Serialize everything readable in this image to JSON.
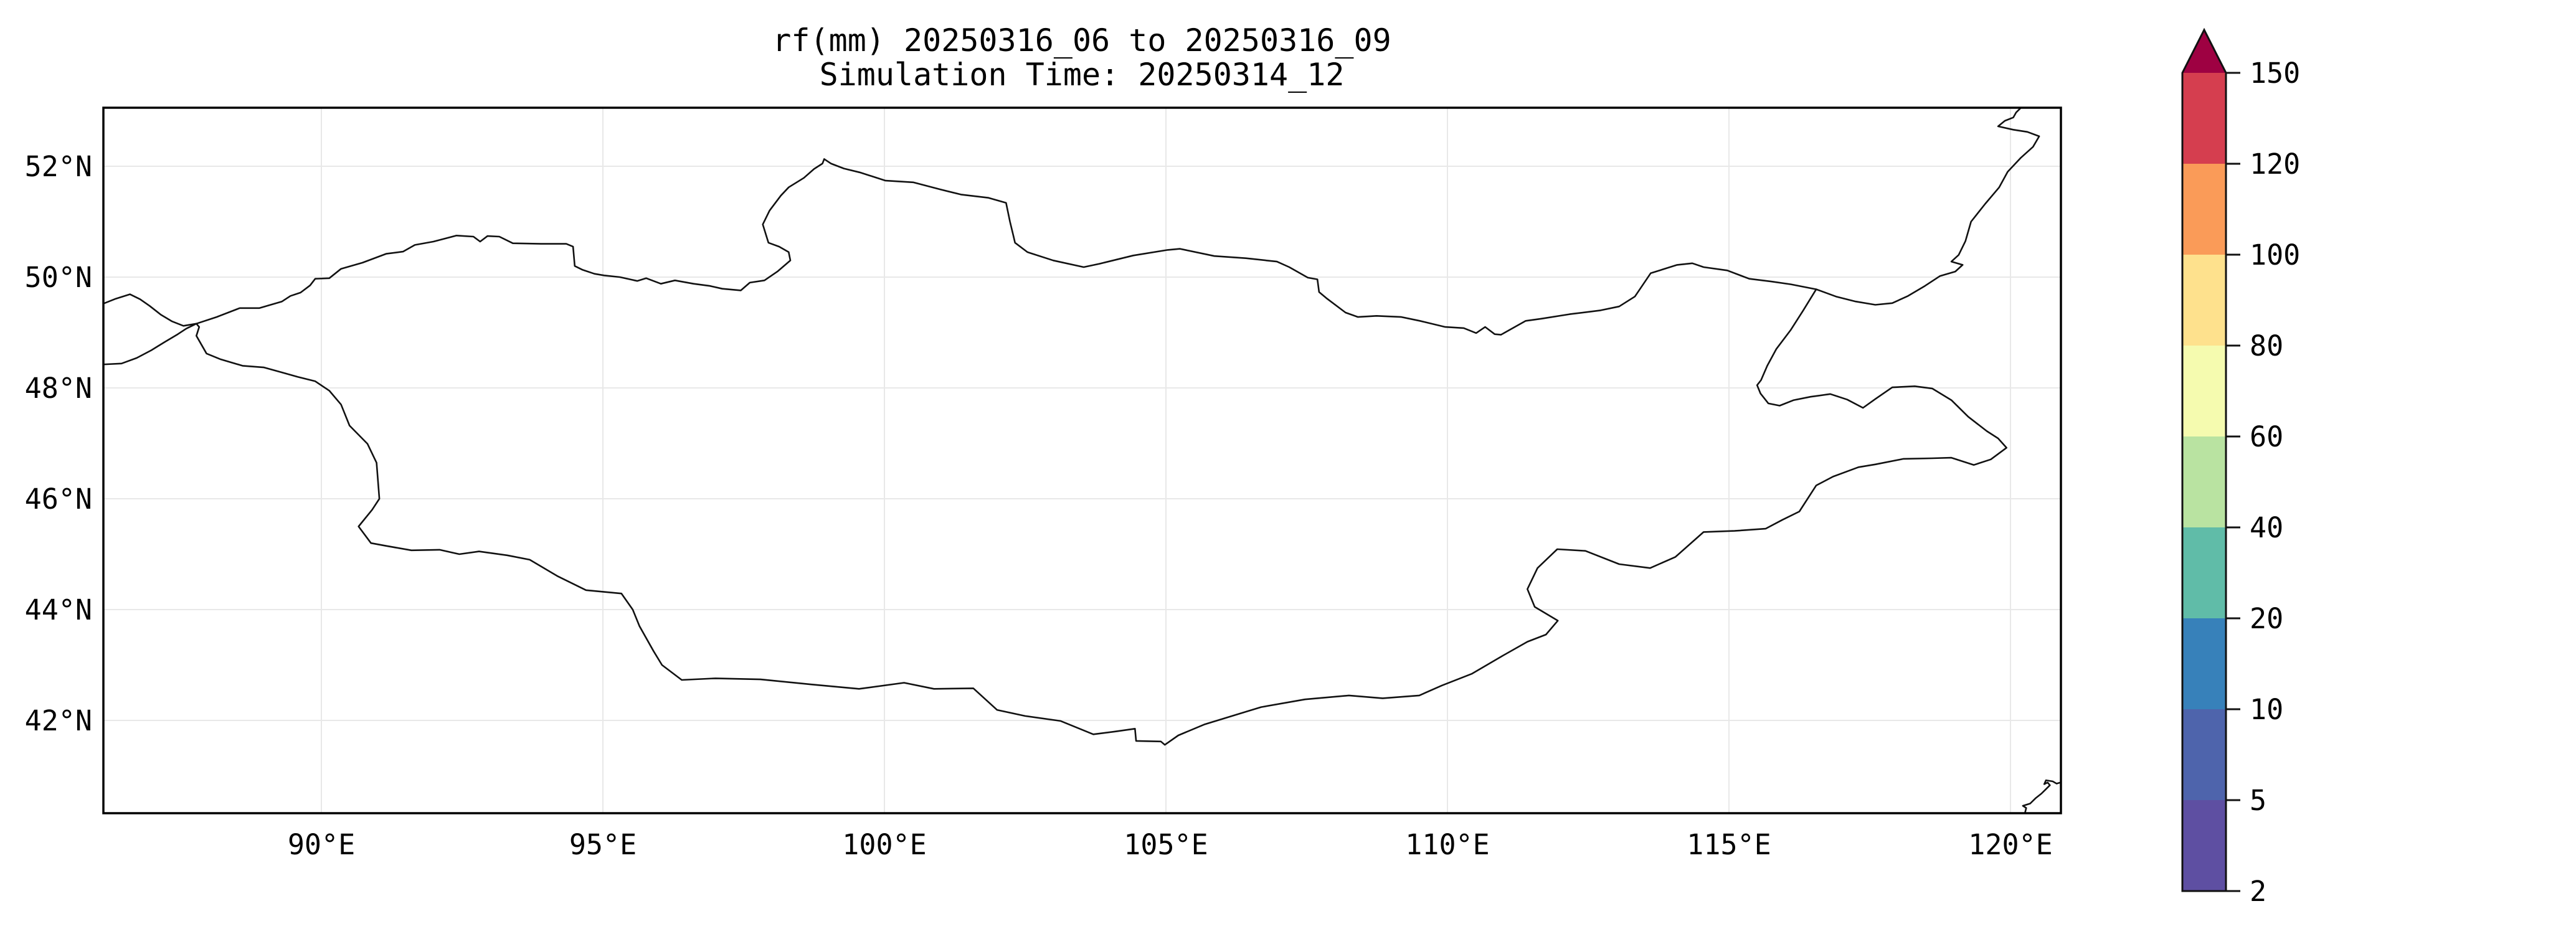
{
  "title": {
    "line1": "rf(mm) 20250316_06 to 20250316_09",
    "line2": "Simulation Time: 20250314_12"
  },
  "axes": {
    "x_ticks": [
      {
        "value": 90,
        "label": "90°E"
      },
      {
        "value": 95,
        "label": "95°E"
      },
      {
        "value": 100,
        "label": "100°E"
      },
      {
        "value": 105,
        "label": "105°E"
      },
      {
        "value": 110,
        "label": "110°E"
      },
      {
        "value": 115,
        "label": "115°E"
      },
      {
        "value": 120,
        "label": "120°E"
      }
    ],
    "y_ticks": [
      {
        "value": 52,
        "label": "52°N"
      },
      {
        "value": 50,
        "label": "50°N"
      },
      {
        "value": 48,
        "label": "48°N"
      },
      {
        "value": 46,
        "label": "46°N"
      },
      {
        "value": 44,
        "label": "44°N"
      },
      {
        "value": 42,
        "label": "42°N"
      }
    ]
  },
  "colorbar": {
    "levels": [
      2,
      5,
      10,
      20,
      40,
      60,
      80,
      100,
      120,
      150
    ],
    "tick_labels": [
      "2",
      "5",
      "10",
      "20",
      "40",
      "60",
      "80",
      "100",
      "120",
      "150"
    ],
    "segment_colors": [
      "#5e4fa2",
      "#4e64ac",
      "#3781ba",
      "#60bca8",
      "#b9e3a1",
      "#f5fbaf",
      "#fee18d",
      "#fa9b58",
      "#d53e4f"
    ],
    "over_color": "#9e0142",
    "outline_color": "#111111"
  },
  "map": {
    "grid_color": "#e8e8e8",
    "border_color": "#111111",
    "borders": {
      "mongolia": [
        [
          87.78,
          49.16
        ],
        [
          88.14,
          49.28
        ],
        [
          88.55,
          49.44
        ],
        [
          88.9,
          49.44
        ],
        [
          89.1,
          49.5
        ],
        [
          89.3,
          49.56
        ],
        [
          89.45,
          49.66
        ],
        [
          89.63,
          49.72
        ],
        [
          89.8,
          49.85
        ],
        [
          89.89,
          49.97
        ],
        [
          90.14,
          49.98
        ],
        [
          90.35,
          50.15
        ],
        [
          90.73,
          50.26
        ],
        [
          91.15,
          50.42
        ],
        [
          91.45,
          50.46
        ],
        [
          91.66,
          50.58
        ],
        [
          91.99,
          50.64
        ],
        [
          92.4,
          50.75
        ],
        [
          92.7,
          50.73
        ],
        [
          92.82,
          50.64
        ],
        [
          92.95,
          50.74
        ],
        [
          93.16,
          50.73
        ],
        [
          93.4,
          50.61
        ],
        [
          93.9,
          50.6
        ],
        [
          94.35,
          50.6
        ],
        [
          94.47,
          50.55
        ],
        [
          94.5,
          50.2
        ],
        [
          94.64,
          50.13
        ],
        [
          94.85,
          50.06
        ],
        [
          95.02,
          50.03
        ],
        [
          95.3,
          50.0
        ],
        [
          95.61,
          49.93
        ],
        [
          95.77,
          49.98
        ],
        [
          96.03,
          49.88
        ],
        [
          96.28,
          49.94
        ],
        [
          96.61,
          49.88
        ],
        [
          96.9,
          49.84
        ],
        [
          97.12,
          49.79
        ],
        [
          97.45,
          49.76
        ],
        [
          97.61,
          49.9
        ],
        [
          97.87,
          49.94
        ],
        [
          98.1,
          50.1
        ],
        [
          98.33,
          50.3
        ],
        [
          98.3,
          50.45
        ],
        [
          98.13,
          50.55
        ],
        [
          97.94,
          50.62
        ],
        [
          97.84,
          50.95
        ],
        [
          97.96,
          51.2
        ],
        [
          98.16,
          51.47
        ],
        [
          98.3,
          51.62
        ],
        [
          98.57,
          51.79
        ],
        [
          98.75,
          51.95
        ],
        [
          98.9,
          52.05
        ],
        [
          98.93,
          52.13
        ],
        [
          99.05,
          52.05
        ],
        [
          99.28,
          51.96
        ],
        [
          99.56,
          51.89
        ],
        [
          100.02,
          51.74
        ],
        [
          100.51,
          51.71
        ],
        [
          101.0,
          51.58
        ],
        [
          101.36,
          51.49
        ],
        [
          101.85,
          51.43
        ],
        [
          102.16,
          51.34
        ],
        [
          102.23,
          51.0
        ],
        [
          102.29,
          50.75
        ],
        [
          102.32,
          50.62
        ],
        [
          102.54,
          50.45
        ],
        [
          103.0,
          50.3
        ],
        [
          103.54,
          50.18
        ],
        [
          103.82,
          50.24
        ],
        [
          104.42,
          50.39
        ],
        [
          105.03,
          50.49
        ],
        [
          105.25,
          50.51
        ],
        [
          105.86,
          50.38
        ],
        [
          106.42,
          50.34
        ],
        [
          106.97,
          50.28
        ],
        [
          107.19,
          50.18
        ],
        [
          107.52,
          49.99
        ],
        [
          107.69,
          49.96
        ],
        [
          107.72,
          49.73
        ],
        [
          107.85,
          49.62
        ],
        [
          108.19,
          49.36
        ],
        [
          108.41,
          49.28
        ],
        [
          108.74,
          49.3
        ],
        [
          109.18,
          49.28
        ],
        [
          109.51,
          49.21
        ],
        [
          109.96,
          49.1
        ],
        [
          110.29,
          49.08
        ],
        [
          110.51,
          48.99
        ],
        [
          110.67,
          49.1
        ],
        [
          110.84,
          48.97
        ],
        [
          110.95,
          48.96
        ],
        [
          111.39,
          49.21
        ],
        [
          111.67,
          49.25
        ],
        [
          112.17,
          49.33
        ],
        [
          112.72,
          49.4
        ],
        [
          113.05,
          49.47
        ],
        [
          113.33,
          49.65
        ],
        [
          113.61,
          50.07
        ],
        [
          114.08,
          50.22
        ],
        [
          114.35,
          50.25
        ],
        [
          114.55,
          50.18
        ],
        [
          114.97,
          50.12
        ],
        [
          115.36,
          49.97
        ],
        [
          115.75,
          49.92
        ],
        [
          116.1,
          49.87
        ],
        [
          116.55,
          49.78
        ],
        [
          116.32,
          49.4
        ],
        [
          116.1,
          49.05
        ],
        [
          115.84,
          48.7
        ],
        [
          115.68,
          48.4
        ],
        [
          115.57,
          48.14
        ],
        [
          115.5,
          48.05
        ],
        [
          115.56,
          47.9
        ],
        [
          115.7,
          47.72
        ],
        [
          115.9,
          47.68
        ],
        [
          116.15,
          47.78
        ],
        [
          116.45,
          47.84
        ],
        [
          116.8,
          47.89
        ],
        [
          117.1,
          47.79
        ],
        [
          117.38,
          47.64
        ],
        [
          117.6,
          47.8
        ],
        [
          117.9,
          48.01
        ],
        [
          118.3,
          48.03
        ],
        [
          118.61,
          47.99
        ],
        [
          118.95,
          47.78
        ],
        [
          119.25,
          47.48
        ],
        [
          119.58,
          47.22
        ],
        [
          119.78,
          47.09
        ],
        [
          119.93,
          46.92
        ],
        [
          119.65,
          46.71
        ],
        [
          119.35,
          46.61
        ],
        [
          118.95,
          46.74
        ],
        [
          118.6,
          46.73
        ],
        [
          118.1,
          46.72
        ],
        [
          117.6,
          46.62
        ],
        [
          117.3,
          46.57
        ],
        [
          116.85,
          46.4
        ],
        [
          116.55,
          46.24
        ],
        [
          116.25,
          45.77
        ],
        [
          115.95,
          45.62
        ],
        [
          115.65,
          45.46
        ],
        [
          115.1,
          45.42
        ],
        [
          114.55,
          45.4
        ],
        [
          114.05,
          44.95
        ],
        [
          113.6,
          44.75
        ],
        [
          113.05,
          44.82
        ],
        [
          112.45,
          45.06
        ],
        [
          111.95,
          45.09
        ],
        [
          111.6,
          44.75
        ],
        [
          111.42,
          44.37
        ],
        [
          111.55,
          44.05
        ],
        [
          111.96,
          43.8
        ],
        [
          111.75,
          43.55
        ],
        [
          111.42,
          43.42
        ],
        [
          110.95,
          43.15
        ],
        [
          110.43,
          42.84
        ],
        [
          109.9,
          42.63
        ],
        [
          109.5,
          42.45
        ],
        [
          108.85,
          42.4
        ],
        [
          108.25,
          42.45
        ],
        [
          107.47,
          42.38
        ],
        [
          106.69,
          42.24
        ],
        [
          105.69,
          41.93
        ],
        [
          105.22,
          41.73
        ],
        [
          104.98,
          41.56
        ],
        [
          104.91,
          41.62
        ],
        [
          104.47,
          41.63
        ],
        [
          104.45,
          41.85
        ],
        [
          104.1,
          41.8
        ],
        [
          103.71,
          41.75
        ],
        [
          103.13,
          41.99
        ],
        [
          102.5,
          42.08
        ],
        [
          102.0,
          42.19
        ],
        [
          101.58,
          42.58
        ],
        [
          100.88,
          42.57
        ],
        [
          100.35,
          42.68
        ],
        [
          99.55,
          42.57
        ],
        [
          98.7,
          42.65
        ],
        [
          97.8,
          42.74
        ],
        [
          97.0,
          42.76
        ],
        [
          96.4,
          42.73
        ],
        [
          96.05,
          43.0
        ],
        [
          95.9,
          43.25
        ],
        [
          95.65,
          43.7
        ],
        [
          95.53,
          44.0
        ],
        [
          95.33,
          44.29
        ],
        [
          94.7,
          44.35
        ],
        [
          94.2,
          44.6
        ],
        [
          93.7,
          44.9
        ],
        [
          93.3,
          44.98
        ],
        [
          92.8,
          45.05
        ],
        [
          92.45,
          45.0
        ],
        [
          92.1,
          45.08
        ],
        [
          91.6,
          45.07
        ],
        [
          91.15,
          45.15
        ],
        [
          90.88,
          45.2
        ],
        [
          90.66,
          45.5
        ],
        [
          90.9,
          45.8
        ],
        [
          91.03,
          46.0
        ],
        [
          90.98,
          46.65
        ],
        [
          90.82,
          46.99
        ],
        [
          90.5,
          47.32
        ],
        [
          90.35,
          47.7
        ],
        [
          90.14,
          47.95
        ],
        [
          89.89,
          48.12
        ],
        [
          89.58,
          48.2
        ],
        [
          89.3,
          48.28
        ],
        [
          88.98,
          48.37
        ],
        [
          88.6,
          48.4
        ],
        [
          88.2,
          48.52
        ],
        [
          87.96,
          48.62
        ],
        [
          87.78,
          48.94
        ],
        [
          87.83,
          49.1
        ],
        [
          87.78,
          49.16
        ]
      ],
      "ru_kz_west": [
        [
          86.05,
          49.49
        ],
        [
          86.35,
          49.61
        ],
        [
          86.6,
          49.69
        ],
        [
          86.78,
          49.6
        ],
        [
          86.95,
          49.48
        ],
        [
          87.15,
          49.32
        ],
        [
          87.35,
          49.2
        ],
        [
          87.55,
          49.12
        ],
        [
          87.78,
          49.16
        ]
      ],
      "kz_cn_west": [
        [
          86.05,
          48.42
        ],
        [
          86.45,
          48.44
        ],
        [
          86.72,
          48.54
        ],
        [
          86.98,
          48.68
        ],
        [
          87.22,
          48.83
        ],
        [
          87.45,
          48.97
        ],
        [
          87.6,
          49.07
        ],
        [
          87.78,
          49.16
        ]
      ],
      "ru_cn_northeast": [
        [
          116.55,
          49.78
        ],
        [
          116.9,
          49.65
        ],
        [
          117.25,
          49.56
        ],
        [
          117.6,
          49.5
        ],
        [
          117.9,
          49.53
        ],
        [
          118.18,
          49.66
        ],
        [
          118.48,
          49.84
        ],
        [
          118.75,
          50.02
        ],
        [
          119.02,
          50.1
        ],
        [
          119.15,
          50.22
        ],
        [
          118.95,
          50.28
        ],
        [
          119.08,
          50.4
        ],
        [
          119.2,
          50.65
        ],
        [
          119.3,
          51.0
        ],
        [
          119.55,
          51.32
        ],
        [
          119.8,
          51.62
        ],
        [
          119.95,
          51.9
        ],
        [
          120.18,
          52.15
        ],
        [
          120.4,
          52.35
        ],
        [
          120.51,
          52.54
        ],
        [
          120.3,
          52.62
        ],
        [
          120.05,
          52.66
        ],
        [
          119.78,
          52.72
        ],
        [
          119.9,
          52.82
        ],
        [
          120.05,
          52.88
        ],
        [
          120.1,
          52.97
        ],
        [
          120.23,
          53.1
        ]
      ],
      "coast_southeast": [
        [
          120.25,
          40.3
        ],
        [
          120.28,
          40.42
        ],
        [
          120.22,
          40.46
        ],
        [
          120.35,
          40.5
        ],
        [
          120.45,
          40.6
        ],
        [
          120.55,
          40.68
        ],
        [
          120.62,
          40.75
        ],
        [
          120.7,
          40.83
        ],
        [
          120.66,
          40.88
        ],
        [
          120.6,
          40.85
        ],
        [
          120.63,
          40.92
        ],
        [
          120.75,
          40.9
        ],
        [
          120.82,
          40.86
        ],
        [
          120.92,
          40.89
        ]
      ]
    }
  },
  "chart_data": {
    "type": "heatmap",
    "title": "rf(mm) 20250316_06 to 20250316_09",
    "subtitle": "Simulation Time: 20250314_12",
    "x_tick_labels": [
      "90°E",
      "95°E",
      "100°E",
      "105°E",
      "110°E",
      "115°E",
      "120°E"
    ],
    "y_tick_labels": [
      "52°N",
      "50°N",
      "48°N",
      "46°N",
      "44°N",
      "42°N"
    ],
    "lon_range": [
      86.1,
      120.9
    ],
    "lat_range": [
      40.3,
      53.1
    ],
    "grid": true,
    "legend_position": "right-colorbar",
    "colorbar_levels": [
      2,
      5,
      10,
      20,
      40,
      60,
      80,
      100,
      120,
      150
    ],
    "colorbar_colors": [
      "#5e4fa2",
      "#4e64ac",
      "#3781ba",
      "#60bca8",
      "#b9e3a1",
      "#f5fbaf",
      "#fee18d",
      "#fa9b58",
      "#d53e4f"
    ],
    "colorbar_over_color": "#9e0142",
    "values_note": "No rainfall shading is drawn inside the map area; only country border outlines are visible"
  }
}
